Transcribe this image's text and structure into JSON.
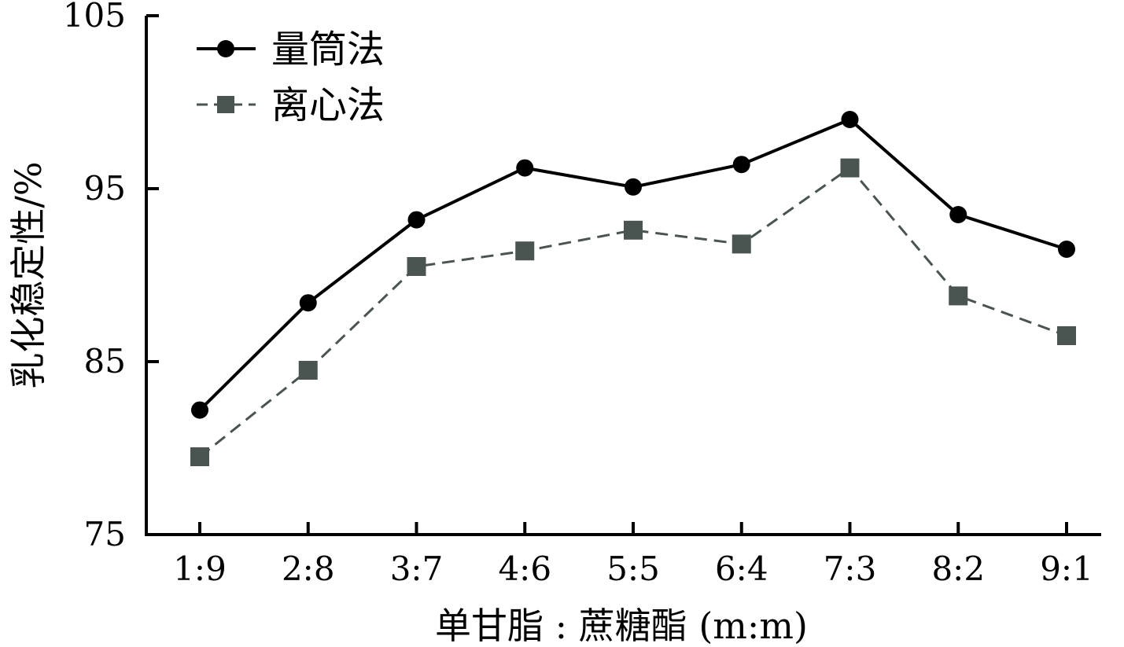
{
  "chart_data": {
    "type": "line",
    "title": "",
    "xlabel": "单甘脂 : 蔗糖酯 (m:m)",
    "ylabel": "乳化稳定性/%",
    "categories": [
      "1:9",
      "2:8",
      "3:7",
      "4:6",
      "5:5",
      "6:4",
      "7:3",
      "8:2",
      "9:1"
    ],
    "ylim": [
      75,
      105
    ],
    "yticks": [
      75,
      85,
      95,
      105
    ],
    "grid": false,
    "legend_position": "top-left",
    "series": [
      {
        "name": "量筒法",
        "marker": "circle",
        "line_style": "solid",
        "color": "#000000",
        "values": [
          82.2,
          88.4,
          93.2,
          96.2,
          95.1,
          96.4,
          99.0,
          93.5,
          91.5
        ]
      },
      {
        "name": "离心法",
        "marker": "square",
        "line_style": "dashed",
        "color": "#4a5552",
        "values": [
          79.5,
          84.5,
          90.5,
          91.4,
          92.6,
          91.8,
          96.2,
          88.8,
          86.5
        ]
      }
    ]
  }
}
